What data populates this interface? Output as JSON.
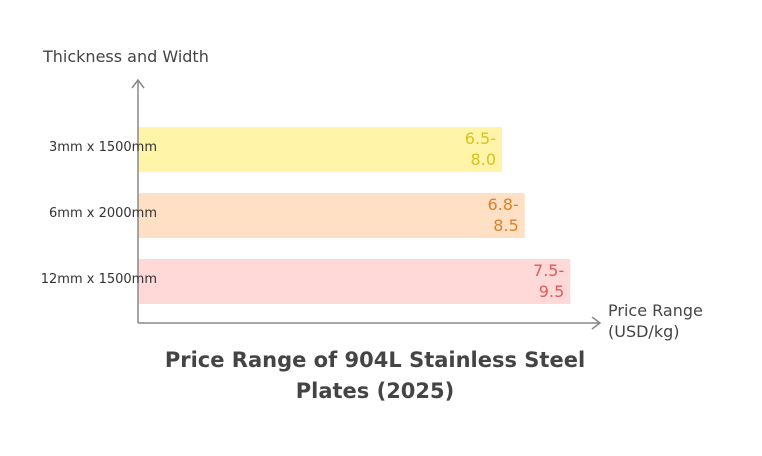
{
  "chart_data": {
    "type": "hbar_range",
    "title": "Price Range of 904L Stainless Steel Plates (2025)",
    "y_label": "Thickness and Width",
    "x_label": "Price Range (USD/kg)",
    "categories": [
      "3mm x 1500mm",
      "6mm x 2000mm",
      "12mm x 1500mm"
    ],
    "low": [
      6.5,
      6.8,
      7.5
    ],
    "values": [
      8.0,
      8.5,
      9.5
    ],
    "value_labels": [
      "6.5-8.0",
      "6.8-8.5",
      "7.5-9.5"
    ],
    "colors": [
      "#fff4a8",
      "#ffe0c4",
      "#ffd8d8"
    ],
    "label_colors": [
      "#d9c21a",
      "#d9822b",
      "#e05a5a"
    ],
    "xlim": [
      0,
      10
    ]
  }
}
